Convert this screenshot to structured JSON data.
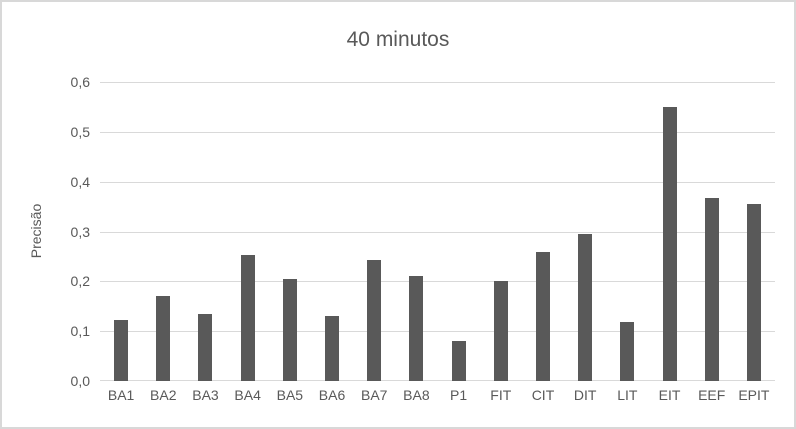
{
  "frame": {
    "background": "#ffffff",
    "border_color": "#d8d8d8"
  },
  "chart_data": {
    "type": "bar",
    "title": "40 minutos",
    "ylabel": "Precisão",
    "xlabel": "",
    "categories": [
      "BA1",
      "BA2",
      "BA3",
      "BA4",
      "BA5",
      "BA6",
      "BA7",
      "BA8",
      "P1",
      "FIT",
      "CIT",
      "DIT",
      "LIT",
      "EIT",
      "EEF",
      "EPIT"
    ],
    "values": [
      0.123,
      0.17,
      0.135,
      0.252,
      0.205,
      0.13,
      0.242,
      0.21,
      0.08,
      0.2,
      0.258,
      0.296,
      0.118,
      0.55,
      0.368,
      0.355
    ],
    "ylim": [
      0,
      0.6
    ],
    "ytick_step": 0.1,
    "ytick_labels": [
      "0,0",
      "0,1",
      "0,2",
      "0,3",
      "0,4",
      "0,5",
      "0,6"
    ],
    "grid": true,
    "legend": false,
    "bar_color": "#595959",
    "gridline_color": "#d9d9d9",
    "axis_line_color": "#d9d9d9",
    "text_color": "#595959"
  }
}
